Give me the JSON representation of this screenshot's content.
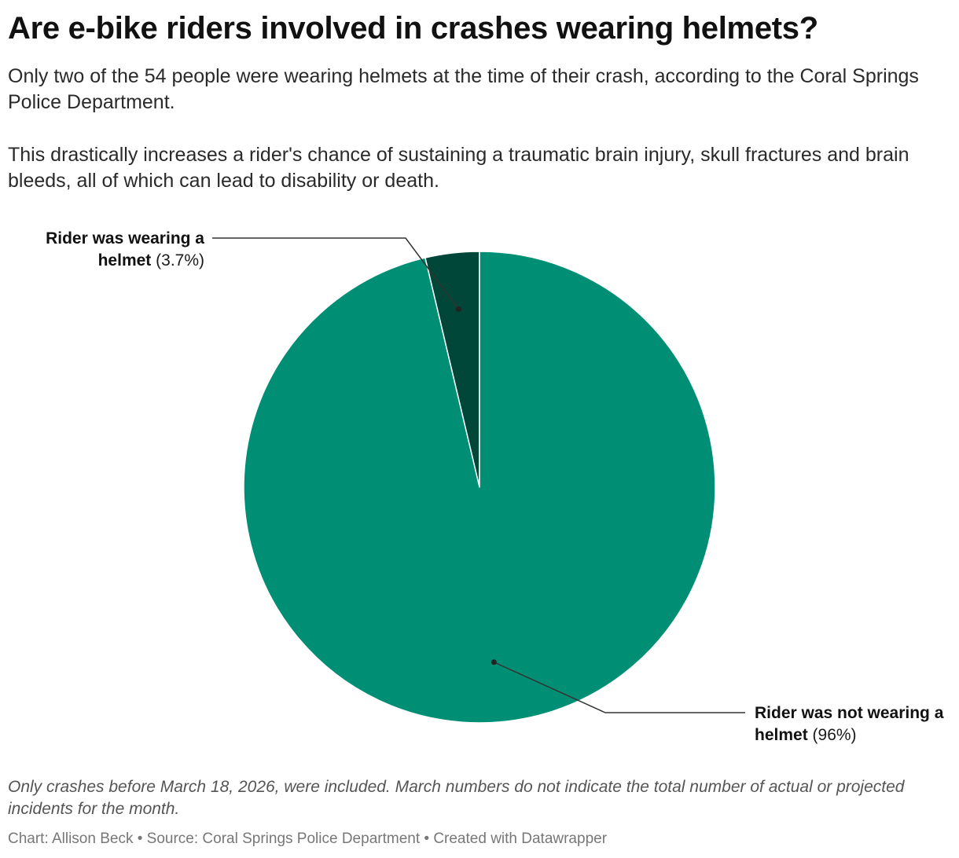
{
  "header": {
    "title": "Are e-bike riders involved in crashes wearing helmets?",
    "description_1": "Only two of the 54 people were wearing helmets at the time of their crash, according to the Coral Springs Police Department.",
    "description_2": "This drastically increases a rider's chance of sustaining a traumatic brain injury, skull fractures and brain bleeds, all of which can lead to disability or death."
  },
  "chart_data": {
    "type": "pie",
    "title": "Are e-bike riders involved in crashes wearing helmets?",
    "slices": [
      {
        "label_bold": "Rider was wearing a helmet",
        "percent_label": "(3.7%)",
        "value": 3.7,
        "color": "#00473a"
      },
      {
        "label_bold": "Rider was not wearing a helmet",
        "percent_label": "(96%)",
        "value": 96.3,
        "color": "#008f74"
      }
    ],
    "legend": "none",
    "labels": "outside-with-leader-lines"
  },
  "notes": "Only crashes before March 18, 2026, were included. March numbers do not indicate the total number of actual or projected incidents for the month.",
  "footer": "Chart: Allison Beck • Source: Coral Springs Police Department • Created with Datawrapper"
}
